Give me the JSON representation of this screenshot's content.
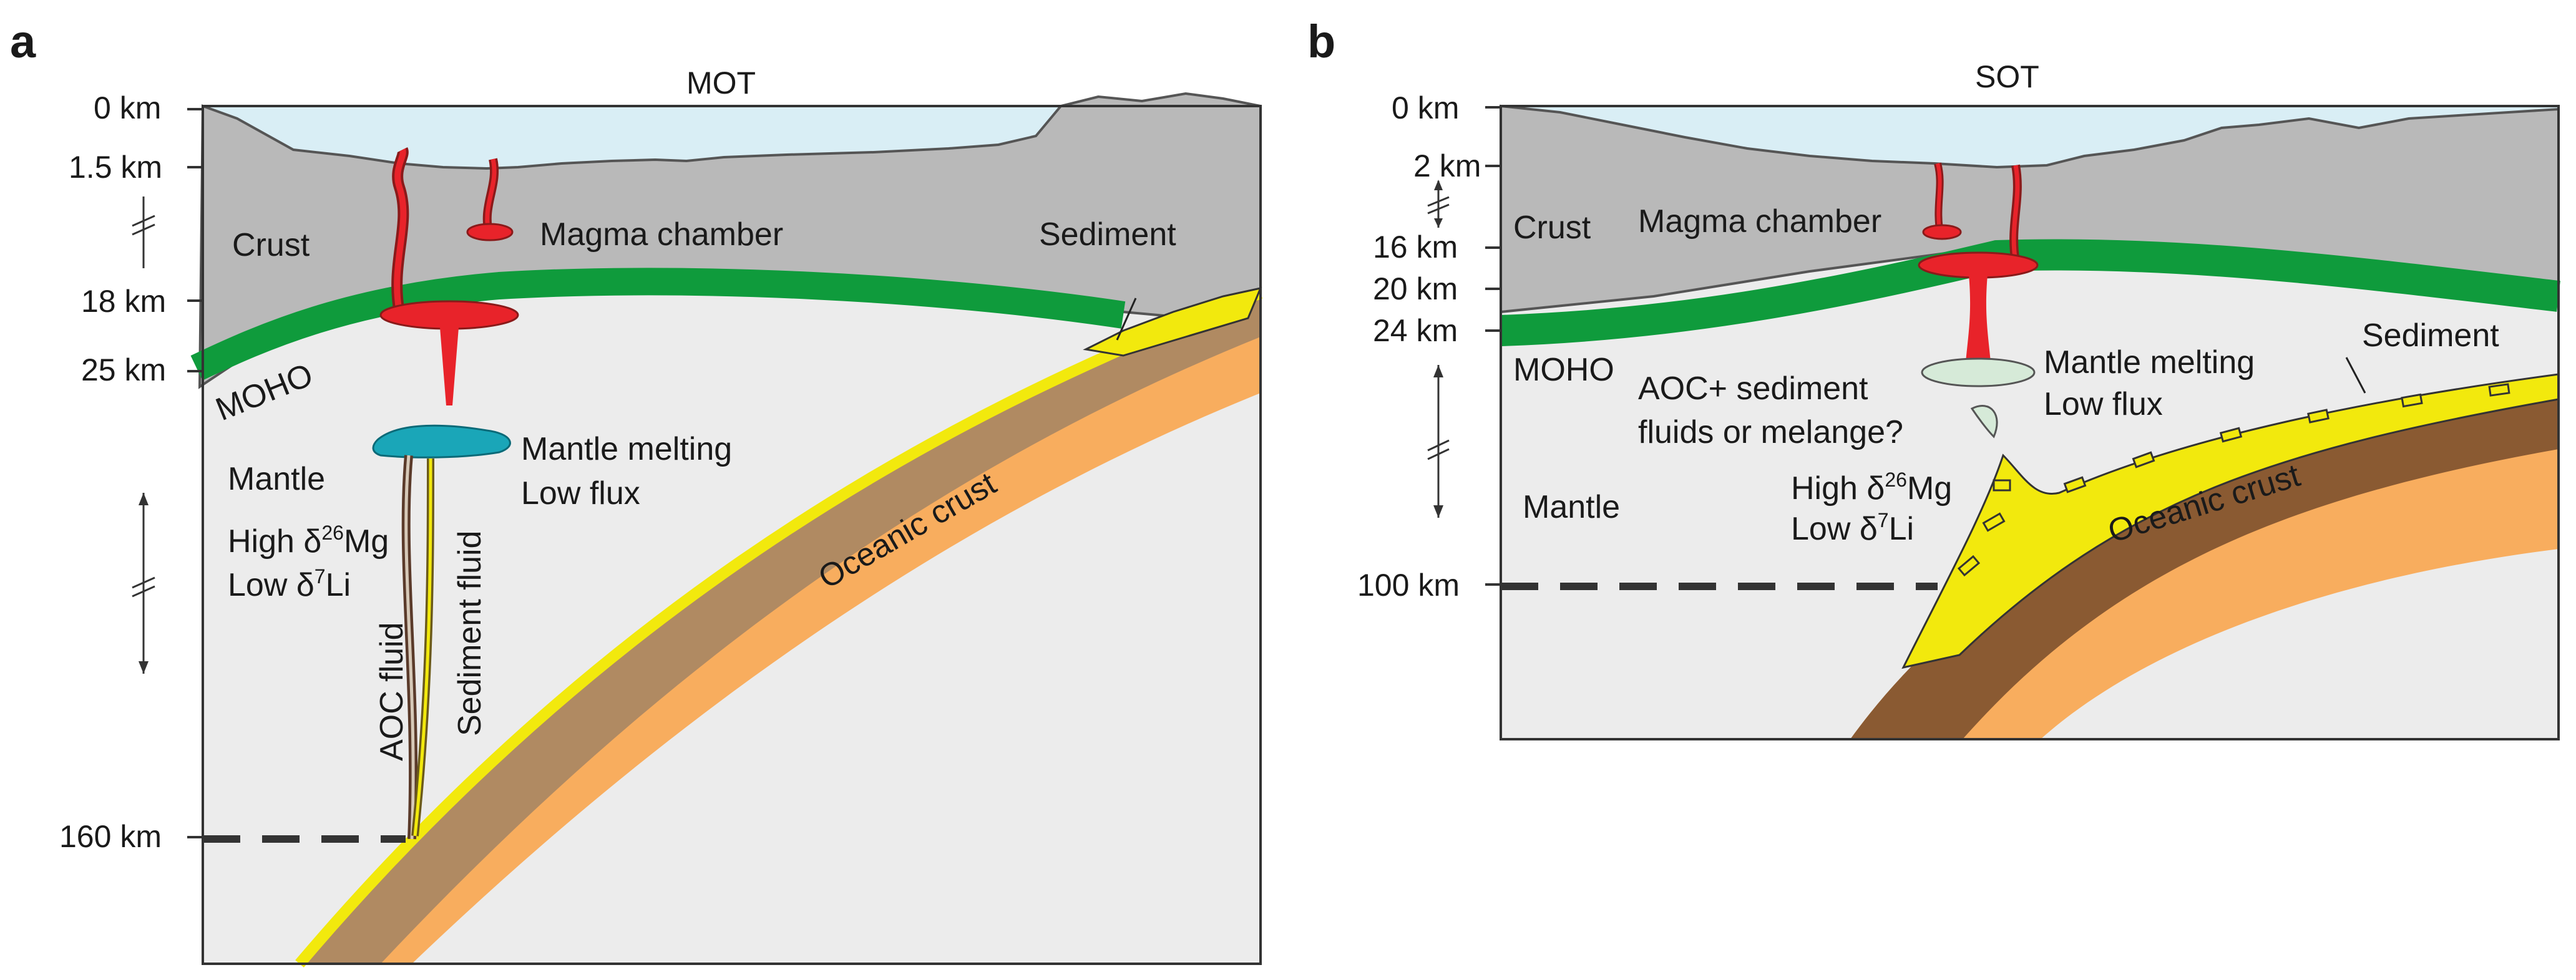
{
  "panels": {
    "a": {
      "letter": "a",
      "title": "MOT",
      "depths": [
        "0 km",
        "1.5 km",
        "18 km",
        "25 km",
        "160 km"
      ],
      "labels": {
        "crust": "Crust",
        "magma_chamber": "Magma chamber",
        "sediment": "Sediment",
        "moho": "MOHO",
        "mantle": "Mantle",
        "mantle_melting": "Mantle melting",
        "low_flux": "Low flux",
        "high": "High δ",
        "mg_iso": "26",
        "mg": "Mg",
        "low": "Low  δ",
        "li_iso": "7",
        "li": "Li",
        "aoc_fluid": "AOC fluid",
        "sediment_fluid": "Sediment fluid",
        "oceanic_crust": "Oceanic crust"
      }
    },
    "b": {
      "letter": "b",
      "title": "SOT",
      "depths": [
        "0 km",
        "2 km",
        "16 km",
        "20 km",
        "24 km",
        "100 km"
      ],
      "labels": {
        "crust": "Crust",
        "magma_chamber": "Magma chamber",
        "moho": "MOHO",
        "mantle_melting": "Mantle melting",
        "low_flux": "Low flux",
        "sediment": "Sediment",
        "aoc_sediment": "AOC+ sediment",
        "fluids_melange": "fluids or melange?",
        "mantle": "Mantle",
        "high": "High δ",
        "mg_iso": "26",
        "mg": "Mg",
        "low": "Low  δ",
        "li_iso": "7",
        "li": "Li",
        "oceanic_crust": "Oceanic crust"
      }
    }
  },
  "colors": {
    "sea": "#d9eef5",
    "crust": "#b9b9b9",
    "mantle": "#ececec",
    "moho": "#0f9b3c",
    "sediment": "#f2e90d",
    "oceanic_crust": "#b08a62",
    "oceanic_crust_dark": "#8a5a32",
    "slab_mantle": "#f8ad5e",
    "magma": "#e8232a",
    "melt_blue": "#1aa6b8",
    "melt_pale": "#d6ead8"
  }
}
